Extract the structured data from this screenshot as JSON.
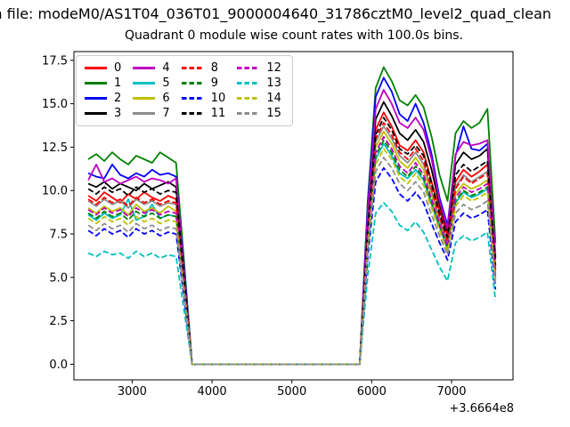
{
  "header": {
    "file_line": "m file: modeM0/AS1T04_036T01_9000004640_31786cztM0_level2_quad_clean"
  },
  "chart_data": {
    "type": "line",
    "title": "Quadrant 0 module wise count rates with 100.0s bins.",
    "xlabel": "",
    "ylabel": "",
    "x_offset_label": "+3.6664e8",
    "xlim": [
      2270,
      7770
    ],
    "ylim": [
      -0.9,
      18.0
    ],
    "x_ticks": [
      3000,
      4000,
      5000,
      6000,
      7000
    ],
    "x_tick_labels": [
      "3000",
      "4000",
      "5000",
      "6000",
      "7000"
    ],
    "y_ticks": [
      0.0,
      2.5,
      5.0,
      7.5,
      10.0,
      12.5,
      15.0,
      17.5
    ],
    "y_tick_labels": [
      "0.0",
      "2.5",
      "5.0",
      "7.5",
      "10.0",
      "12.5",
      "15.0",
      "17.5"
    ],
    "grid": false,
    "legend_position": "upper left",
    "legend_columns": 4,
    "x": [
      2450,
      2550,
      2650,
      2750,
      2850,
      2950,
      3050,
      3150,
      3250,
      3350,
      3450,
      3550,
      3650,
      3750,
      3850,
      3950,
      4050,
      4150,
      4250,
      4350,
      4450,
      4550,
      4650,
      4750,
      4850,
      4950,
      5050,
      5150,
      5250,
      5350,
      5450,
      5550,
      5650,
      5750,
      5850,
      5950,
      6050,
      6150,
      6250,
      6350,
      6450,
      6550,
      6650,
      6750,
      6850,
      6950,
      7050,
      7150,
      7250,
      7350,
      7450,
      7550
    ],
    "series": [
      {
        "name": "0",
        "color": "#ff0000",
        "dash": false,
        "values": [
          9.7,
          9.4,
          9.9,
          9.6,
          9.3,
          9.8,
          9.5,
          9.9,
          9.6,
          9.4,
          9.7,
          9.5,
          4.8,
          0,
          0,
          0,
          0,
          0,
          0,
          0,
          0,
          0,
          0,
          0,
          0,
          0,
          0,
          0,
          0,
          0,
          0,
          0,
          0,
          0,
          0,
          8.0,
          13.5,
          14.5,
          13.7,
          12.6,
          12.3,
          12.9,
          12.2,
          10.5,
          8.9,
          7.4,
          10.5,
          11.2,
          10.8,
          11.1,
          11.5,
          5.6
        ]
      },
      {
        "name": "1",
        "color": "#008000",
        "dash": false,
        "values": [
          11.8,
          12.1,
          11.7,
          12.2,
          11.8,
          11.5,
          12.0,
          11.8,
          11.6,
          12.2,
          11.9,
          11.6,
          5.9,
          0,
          0,
          0,
          0,
          0,
          0,
          0,
          0,
          0,
          0,
          0,
          0,
          0,
          0,
          0,
          0,
          0,
          0,
          0,
          0,
          0,
          0,
          9.4,
          15.9,
          17.1,
          16.3,
          15.2,
          14.9,
          15.5,
          14.8,
          13.1,
          10.9,
          9.4,
          13.3,
          14.0,
          13.6,
          13.9,
          14.7,
          7.0
        ]
      },
      {
        "name": "2",
        "color": "#0000ff",
        "dash": false,
        "values": [
          11.0,
          10.8,
          10.7,
          11.5,
          10.9,
          10.7,
          11.0,
          10.8,
          11.2,
          10.9,
          11.0,
          10.8,
          5.5,
          0,
          0,
          0,
          0,
          0,
          0,
          0,
          0,
          0,
          0,
          0,
          0,
          0,
          0,
          0,
          0,
          0,
          0,
          0,
          0,
          0,
          0,
          9.1,
          15.4,
          16.5,
          15.7,
          14.4,
          14.0,
          15.0,
          13.9,
          12.1,
          9.6,
          8.0,
          12.0,
          13.7,
          12.4,
          12.3,
          12.7,
          6.2
        ]
      },
      {
        "name": "3",
        "color": "#000000",
        "dash": false,
        "values": [
          10.4,
          10.2,
          10.5,
          10.1,
          10.4,
          10.2,
          10.0,
          10.4,
          10.1,
          10.3,
          10.5,
          10.2,
          5.1,
          0,
          0,
          0,
          0,
          0,
          0,
          0,
          0,
          0,
          0,
          0,
          0,
          0,
          0,
          0,
          0,
          0,
          0,
          0,
          0,
          0,
          0,
          8.3,
          14.1,
          15.1,
          14.3,
          13.3,
          12.9,
          13.5,
          12.8,
          11.2,
          9.2,
          7.7,
          11.5,
          12.2,
          11.8,
          12.0,
          12.4,
          6.1
        ]
      },
      {
        "name": "4",
        "color": "#bf00bf",
        "dash": false,
        "values": [
          10.6,
          11.5,
          10.5,
          10.7,
          10.4,
          10.6,
          10.8,
          10.5,
          10.7,
          10.6,
          10.4,
          10.7,
          5.3,
          0,
          0,
          0,
          0,
          0,
          0,
          0,
          0,
          0,
          0,
          0,
          0,
          0,
          0,
          0,
          0,
          0,
          0,
          0,
          0,
          0,
          0,
          8.7,
          14.7,
          15.8,
          15.0,
          13.9,
          13.6,
          14.2,
          13.5,
          11.8,
          9.4,
          7.8,
          12.1,
          12.8,
          12.6,
          12.7,
          12.9,
          6.3
        ]
      },
      {
        "name": "5",
        "color": "#00bfbf",
        "dash": false,
        "values": [
          8.6,
          8.3,
          8.7,
          8.4,
          8.6,
          9.5,
          8.3,
          8.5,
          9.2,
          8.4,
          8.6,
          8.5,
          4.3,
          0,
          0,
          0,
          0,
          0,
          0,
          0,
          0,
          0,
          0,
          0,
          0,
          0,
          0,
          0,
          0,
          0,
          0,
          0,
          0,
          0,
          0,
          7.0,
          11.8,
          12.7,
          12.0,
          11.0,
          10.7,
          11.2,
          10.6,
          9.2,
          7.9,
          6.6,
          9.3,
          9.9,
          9.6,
          9.8,
          10.1,
          4.9
        ]
      },
      {
        "name": "6",
        "color": "#bfbf00",
        "dash": false,
        "values": [
          9.0,
          8.7,
          9.1,
          8.8,
          9.0,
          8.6,
          9.2,
          8.8,
          9.0,
          8.7,
          9.1,
          8.8,
          4.5,
          0,
          0,
          0,
          0,
          0,
          0,
          0,
          0,
          0,
          0,
          0,
          0,
          0,
          0,
          0,
          0,
          0,
          0,
          0,
          0,
          0,
          0,
          7.4,
          12.5,
          13.4,
          12.7,
          11.7,
          11.3,
          11.9,
          11.2,
          9.7,
          8.2,
          6.9,
          9.8,
          10.4,
          10.1,
          10.3,
          10.6,
          5.2
        ]
      },
      {
        "name": "7",
        "color": "#8c8c8c",
        "dash": false,
        "values": [
          9.4,
          9.1,
          9.5,
          9.2,
          9.4,
          9.0,
          9.5,
          9.2,
          9.4,
          9.1,
          9.3,
          9.2,
          4.7,
          0,
          0,
          0,
          0,
          0,
          0,
          0,
          0,
          0,
          0,
          0,
          0,
          0,
          0,
          0,
          0,
          0,
          0,
          0,
          0,
          0,
          0,
          7.5,
          12.8,
          13.7,
          13.0,
          12.0,
          11.6,
          12.2,
          11.5,
          10.0,
          8.4,
          7.0,
          10.2,
          10.9,
          10.5,
          10.8,
          11.1,
          5.4
        ]
      },
      {
        "name": "8",
        "color": "#ff0000",
        "dash": true,
        "values": [
          9.5,
          9.2,
          9.6,
          9.3,
          9.5,
          9.1,
          9.6,
          9.3,
          9.5,
          9.2,
          9.4,
          9.3,
          4.7,
          0,
          0,
          0,
          0,
          0,
          0,
          0,
          0,
          0,
          0,
          0,
          0,
          0,
          0,
          0,
          0,
          0,
          0,
          0,
          0,
          0,
          0,
          7.6,
          13.0,
          13.9,
          13.2,
          12.2,
          11.8,
          12.4,
          11.7,
          10.1,
          8.5,
          7.1,
          10.1,
          10.8,
          10.4,
          10.7,
          11.0,
          5.4
        ]
      },
      {
        "name": "9",
        "color": "#008000",
        "dash": true,
        "values": [
          8.7,
          8.4,
          8.8,
          8.5,
          8.7,
          8.3,
          8.8,
          8.5,
          8.7,
          8.4,
          8.6,
          8.5,
          4.3,
          0,
          0,
          0,
          0,
          0,
          0,
          0,
          0,
          0,
          0,
          0,
          0,
          0,
          0,
          0,
          0,
          0,
          0,
          0,
          0,
          0,
          0,
          7.1,
          12.0,
          12.9,
          12.2,
          11.2,
          10.8,
          11.4,
          10.7,
          9.3,
          8.0,
          6.7,
          9.4,
          10.0,
          9.7,
          9.9,
          10.2,
          5.0
        ]
      },
      {
        "name": "10",
        "color": "#0000ff",
        "dash": true,
        "values": [
          7.7,
          7.4,
          7.8,
          7.5,
          7.7,
          7.3,
          7.8,
          7.5,
          7.7,
          7.4,
          7.6,
          7.5,
          3.8,
          0,
          0,
          0,
          0,
          0,
          0,
          0,
          0,
          0,
          0,
          0,
          0,
          0,
          0,
          0,
          0,
          0,
          0,
          0,
          0,
          0,
          0,
          6.2,
          10.5,
          11.3,
          10.7,
          9.8,
          9.4,
          9.9,
          9.3,
          8.1,
          7.0,
          6.0,
          8.2,
          8.7,
          8.4,
          8.6,
          8.9,
          4.3
        ]
      },
      {
        "name": "11",
        "color": "#000000",
        "dash": true,
        "values": [
          10.1,
          9.8,
          10.2,
          9.9,
          10.1,
          9.7,
          10.2,
          9.9,
          10.1,
          9.8,
          10.0,
          9.9,
          5.0,
          0,
          0,
          0,
          0,
          0,
          0,
          0,
          0,
          0,
          0,
          0,
          0,
          0,
          0,
          0,
          0,
          0,
          0,
          0,
          0,
          0,
          0,
          7.8,
          13.2,
          14.2,
          13.5,
          12.4,
          12.1,
          12.6,
          12.0,
          10.4,
          8.7,
          7.3,
          10.9,
          11.5,
          11.1,
          11.4,
          11.7,
          5.7
        ]
      },
      {
        "name": "12",
        "color": "#bf00bf",
        "dash": true,
        "values": [
          8.9,
          8.6,
          9.0,
          8.7,
          8.9,
          8.5,
          9.0,
          8.7,
          8.9,
          8.6,
          8.8,
          8.7,
          4.4,
          0,
          0,
          0,
          0,
          0,
          0,
          0,
          0,
          0,
          0,
          0,
          0,
          0,
          0,
          0,
          0,
          0,
          0,
          0,
          0,
          0,
          0,
          7.2,
          12.2,
          13.1,
          12.4,
          11.4,
          11.0,
          11.6,
          10.9,
          9.5,
          8.1,
          6.8,
          9.6,
          10.2,
          9.9,
          10.1,
          10.4,
          5.1
        ]
      },
      {
        "name": "13",
        "color": "#00bfbf",
        "dash": true,
        "values": [
          6.4,
          6.2,
          6.5,
          6.3,
          6.4,
          6.1,
          6.5,
          6.2,
          6.4,
          6.1,
          6.3,
          6.2,
          3.1,
          0,
          0,
          0,
          0,
          0,
          0,
          0,
          0,
          0,
          0,
          0,
          0,
          0,
          0,
          0,
          0,
          0,
          0,
          0,
          0,
          0,
          0,
          5.1,
          8.7,
          9.3,
          8.8,
          8.0,
          7.7,
          8.2,
          7.6,
          6.6,
          5.6,
          4.8,
          7.0,
          7.4,
          7.1,
          7.3,
          7.6,
          3.7
        ]
      },
      {
        "name": "14",
        "color": "#bfbf00",
        "dash": true,
        "values": [
          8.4,
          8.1,
          8.5,
          8.2,
          8.4,
          8.0,
          8.5,
          8.2,
          8.4,
          8.1,
          8.3,
          8.2,
          4.2,
          0,
          0,
          0,
          0,
          0,
          0,
          0,
          0,
          0,
          0,
          0,
          0,
          0,
          0,
          0,
          0,
          0,
          0,
          0,
          0,
          0,
          0,
          6.8,
          11.5,
          12.4,
          11.8,
          10.8,
          10.4,
          11.0,
          10.3,
          9.0,
          7.7,
          6.5,
          9.1,
          9.7,
          9.4,
          9.6,
          9.9,
          4.8
        ]
      },
      {
        "name": "15",
        "color": "#8c8c8c",
        "dash": true,
        "values": [
          8.0,
          7.7,
          8.1,
          7.8,
          8.0,
          7.6,
          8.1,
          7.8,
          8.0,
          7.7,
          7.9,
          7.8,
          4.0,
          0,
          0,
          0,
          0,
          0,
          0,
          0,
          0,
          0,
          0,
          0,
          0,
          0,
          0,
          0,
          0,
          0,
          0,
          0,
          0,
          0,
          0,
          6.5,
          11.1,
          11.9,
          11.3,
          10.4,
          10.0,
          10.5,
          9.9,
          8.6,
          7.4,
          6.3,
          8.7,
          9.2,
          8.9,
          9.1,
          9.4,
          4.6
        ]
      }
    ]
  }
}
